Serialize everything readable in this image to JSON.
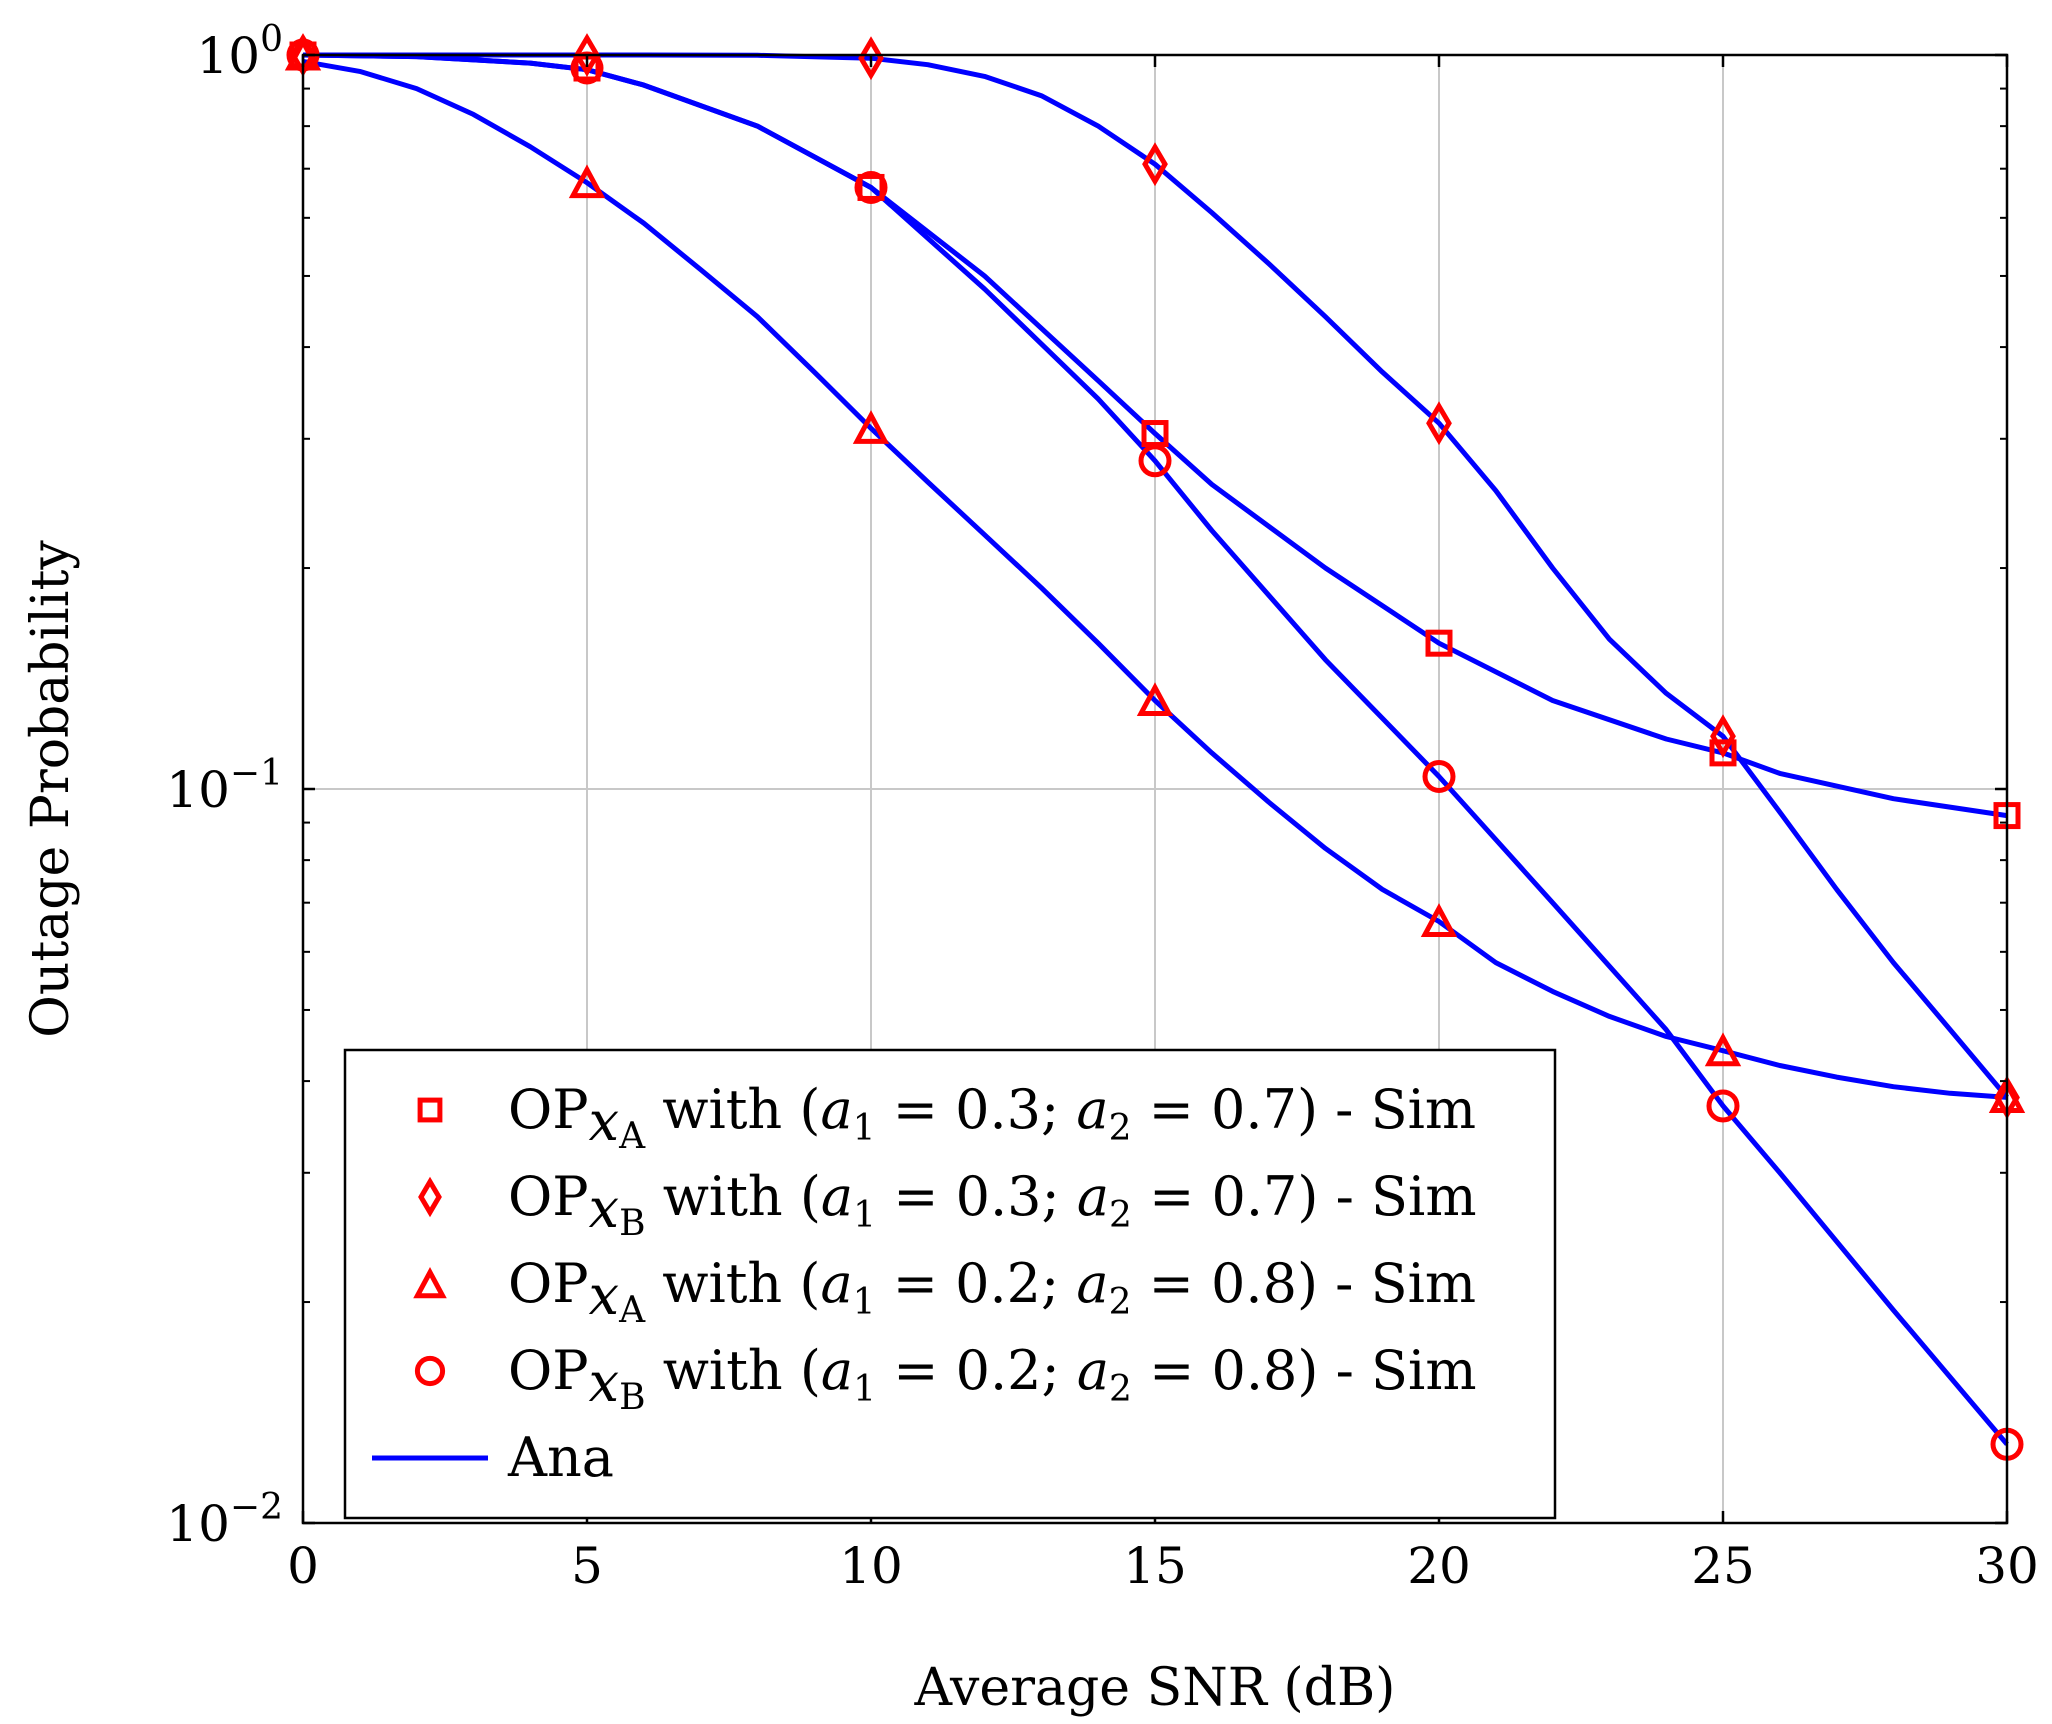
{
  "chart_data": {
    "type": "line",
    "title": "",
    "xlabel": "Average SNR (dB)",
    "ylabel": "Outage Probability",
    "xlim": [
      0,
      30
    ],
    "ylim": [
      0.01,
      1
    ],
    "yscale": "log",
    "grid": true,
    "legend_position": "bottom-left",
    "xticks": [
      0,
      5,
      10,
      15,
      20,
      25,
      30
    ],
    "yticks": [
      {
        "value": 1,
        "base": "10",
        "exp": "0"
      },
      {
        "value": 0.1,
        "base": "10",
        "exp": "−1"
      },
      {
        "value": 0.01,
        "base": "10",
        "exp": "−2"
      }
    ],
    "colors": {
      "sim": "#ff0000",
      "ana": "#0000ff",
      "grid": "#c8c8c8",
      "axis": "#000000"
    },
    "series": [
      {
        "name": "OP_xA with (a1 = 0.3; a2 = 0.7) - Sim",
        "marker": "square",
        "x": [
          0,
          5,
          10,
          15,
          20,
          25,
          30
        ],
        "values": [
          1.0,
          0.96,
          0.66,
          0.305,
          0.158,
          0.112,
          0.092
        ]
      },
      {
        "name": "OP_xB with (a1 = 0.3; a2 = 0.7) - Sim",
        "marker": "diamond",
        "x": [
          0,
          5,
          10,
          15,
          20,
          25,
          30
        ],
        "values": [
          1.0,
          1.0,
          0.99,
          0.71,
          0.315,
          0.118,
          0.038
        ]
      },
      {
        "name": "OP_xA with (a1 = 0.2; a2 = 0.8) - Sim",
        "marker": "triangle",
        "x": [
          0,
          5,
          10,
          15,
          20,
          25,
          30
        ],
        "values": [
          1.0,
          0.67,
          0.31,
          0.132,
          0.066,
          0.044,
          0.038
        ]
      },
      {
        "name": "OP_xB with (a1 = 0.2; a2 = 0.8) - Sim",
        "marker": "circle",
        "x": [
          0,
          5,
          10,
          15,
          20,
          25,
          30
        ],
        "values": [
          1.0,
          0.96,
          0.66,
          0.28,
          0.104,
          0.037,
          0.0128
        ]
      }
    ],
    "ana_curves": [
      {
        "name": "Ana OP_xA (0.3;0.7)",
        "x": [
          0,
          2,
          4,
          5,
          6,
          8,
          10,
          12,
          14,
          15,
          16,
          18,
          20,
          22,
          24,
          25,
          26,
          28,
          30
        ],
        "values": [
          1.0,
          0.995,
          0.975,
          0.955,
          0.91,
          0.8,
          0.66,
          0.5,
          0.36,
          0.305,
          0.26,
          0.2,
          0.158,
          0.132,
          0.117,
          0.112,
          0.105,
          0.097,
          0.092
        ]
      },
      {
        "name": "Ana OP_xB (0.3;0.7)",
        "x": [
          0,
          2,
          4,
          6,
          8,
          10,
          11,
          12,
          13,
          14,
          15,
          16,
          17,
          18,
          19,
          20,
          21,
          22,
          23,
          24,
          25,
          26,
          27,
          28,
          29,
          30
        ],
        "values": [
          1.0,
          1.0,
          1.0,
          1.0,
          0.999,
          0.99,
          0.97,
          0.935,
          0.88,
          0.8,
          0.71,
          0.61,
          0.52,
          0.44,
          0.37,
          0.315,
          0.255,
          0.2,
          0.16,
          0.135,
          0.118,
          0.093,
          0.073,
          0.058,
          0.047,
          0.038
        ]
      },
      {
        "name": "Ana OP_xA (0.2;0.8)",
        "x": [
          0,
          1,
          2,
          3,
          4,
          5,
          6,
          7,
          8,
          9,
          10,
          11,
          12,
          13,
          14,
          15,
          16,
          17,
          18,
          19,
          20,
          21,
          22,
          23,
          24,
          25,
          26,
          27,
          28,
          29,
          30
        ],
        "values": [
          0.98,
          0.95,
          0.9,
          0.83,
          0.75,
          0.67,
          0.59,
          0.51,
          0.44,
          0.37,
          0.31,
          0.262,
          0.222,
          0.188,
          0.158,
          0.132,
          0.112,
          0.096,
          0.083,
          0.073,
          0.066,
          0.058,
          0.053,
          0.049,
          0.046,
          0.044,
          0.042,
          0.0405,
          0.0393,
          0.0385,
          0.038
        ]
      },
      {
        "name": "Ana OP_xB (0.2;0.8)",
        "x": [
          0,
          2,
          4,
          5,
          6,
          8,
          10,
          12,
          14,
          15,
          16,
          18,
          20,
          22,
          24,
          25,
          26,
          28,
          30
        ],
        "values": [
          1.0,
          0.995,
          0.975,
          0.955,
          0.91,
          0.8,
          0.66,
          0.48,
          0.34,
          0.28,
          0.225,
          0.15,
          0.104,
          0.07,
          0.047,
          0.037,
          0.03,
          0.0195,
          0.0128
        ]
      }
    ],
    "legend": [
      {
        "marker": "square",
        "base": "OP",
        "sub": "x",
        "subsub": "A",
        "mid": " with (",
        "a1": "a",
        "a1sub": "1",
        "eq1": " = 0.3; ",
        "a2": "a",
        "a2sub": "2",
        "eq2": " = 0.7) - Sim"
      },
      {
        "marker": "diamond",
        "base": "OP",
        "sub": "x",
        "subsub": "B",
        "mid": " with (",
        "a1": "a",
        "a1sub": "1",
        "eq1": " = 0.3; ",
        "a2": "a",
        "a2sub": "2",
        "eq2": " = 0.7) - Sim"
      },
      {
        "marker": "triangle",
        "base": "OP",
        "sub": "x",
        "subsub": "A",
        "mid": " with (",
        "a1": "a",
        "a1sub": "1",
        "eq1": " = 0.2; ",
        "a2": "a",
        "a2sub": "2",
        "eq2": " = 0.8) - Sim"
      },
      {
        "marker": "circle",
        "base": "OP",
        "sub": "x",
        "subsub": "B",
        "mid": " with (",
        "a1": "a",
        "a1sub": "1",
        "eq1": " = 0.2; ",
        "a2": "a",
        "a2sub": "2",
        "eq2": " = 0.8) - Sim"
      },
      {
        "marker": "line",
        "label": "Ana"
      }
    ]
  }
}
